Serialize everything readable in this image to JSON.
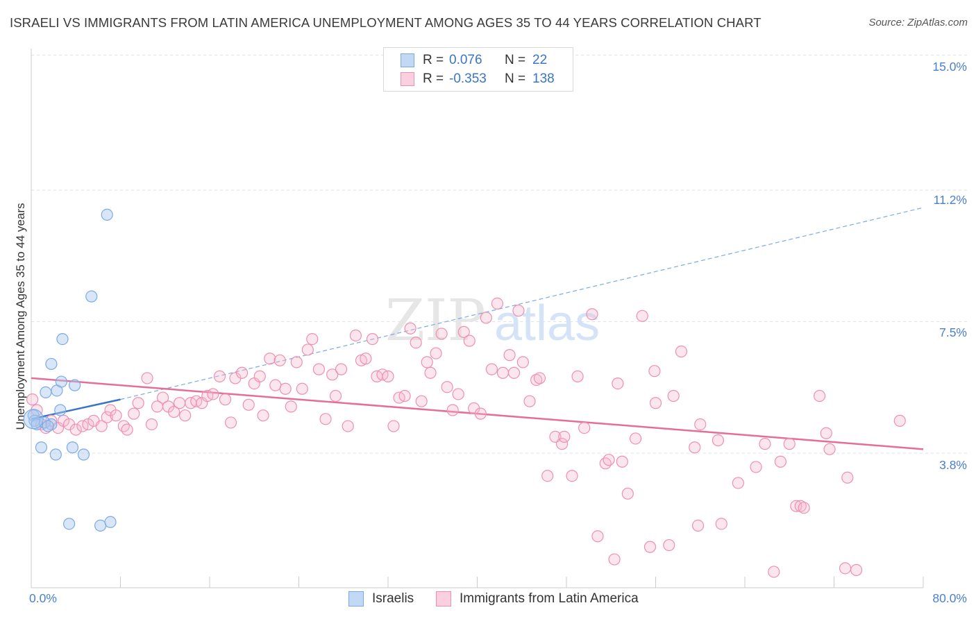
{
  "title": "ISRAELI VS IMMIGRANTS FROM LATIN AMERICA UNEMPLOYMENT AMONG AGES 35 TO 44 YEARS CORRELATION CHART",
  "source": "Source: ZipAtlas.com",
  "watermark": {
    "zip": "ZIP",
    "atlas": "atlas"
  },
  "legend": {
    "rows": [
      {
        "r_label": "R =",
        "r_value": "0.076",
        "n_label": "N =",
        "n_value": "22",
        "color": "#a9c7f0"
      },
      {
        "r_label": "R =",
        "r_value": "-0.353",
        "n_label": "N =",
        "n_value": "138",
        "color": "#f7b8cc"
      }
    ]
  },
  "bottom_legend": [
    {
      "label": "Israelis",
      "color": "#a9c7f0"
    },
    {
      "label": "Immigrants from Latin America",
      "color": "#f7b8cc"
    }
  ],
  "chart_data": {
    "type": "scatter",
    "title": "ISRAELI VS IMMIGRANTS FROM LATIN AMERICA UNEMPLOYMENT AMONG AGES 35 TO 44 YEARS CORRELATION CHART",
    "xlabel": "",
    "ylabel": "Unemployment Among Ages 35 to 44 years",
    "xlim": [
      0,
      80
    ],
    "ylim": [
      0,
      15.0
    ],
    "x_tick_labels": [
      "0.0%",
      "80.0%"
    ],
    "y_ticks": [
      3.8,
      7.5,
      11.2,
      15.0
    ],
    "y_tick_labels": [
      "3.8%",
      "7.5%",
      "11.2%",
      "15.0%"
    ],
    "series": [
      {
        "name": "Israelis",
        "color": "#7aaae6",
        "points": [
          [
            0.2,
            4.85
          ],
          [
            0.3,
            4.7
          ],
          [
            0.5,
            4.6
          ],
          [
            1.2,
            4.65
          ],
          [
            1.8,
            4.6
          ],
          [
            1.5,
            4.55
          ],
          [
            2.3,
            5.55
          ],
          [
            2.6,
            5.0
          ],
          [
            1.3,
            5.5
          ],
          [
            2.7,
            5.8
          ],
          [
            3.9,
            5.7
          ],
          [
            1.8,
            6.3
          ],
          [
            2.8,
            7.0
          ],
          [
            5.4,
            8.2
          ],
          [
            6.8,
            10.5
          ],
          [
            0.9,
            3.95
          ],
          [
            2.2,
            3.75
          ],
          [
            3.7,
            3.95
          ],
          [
            4.7,
            3.75
          ],
          [
            3.4,
            1.8
          ],
          [
            6.2,
            1.75
          ],
          [
            7.1,
            1.85
          ]
        ],
        "trend": {
          "x": [
            0,
            8
          ],
          "y": [
            4.75,
            5.3
          ],
          "dashed_extension": {
            "x": [
              8,
              80
            ],
            "y": [
              5.3,
              10.7
            ]
          }
        }
      },
      {
        "name": "Immigrants from Latin America",
        "color": "#ef8fb0",
        "points": [
          [
            0.1,
            5.3
          ],
          [
            0.5,
            5.0
          ],
          [
            0.9,
            4.6
          ],
          [
            1.3,
            4.5
          ],
          [
            1.8,
            4.7
          ],
          [
            2.4,
            4.5
          ],
          [
            2.9,
            4.7
          ],
          [
            3.4,
            4.6
          ],
          [
            4.0,
            4.45
          ],
          [
            4.6,
            4.55
          ],
          [
            5.1,
            4.6
          ],
          [
            5.6,
            4.7
          ],
          [
            6.3,
            4.55
          ],
          [
            6.8,
            4.8
          ],
          [
            7.1,
            5.0
          ],
          [
            7.6,
            4.85
          ],
          [
            8.3,
            4.55
          ],
          [
            8.6,
            4.45
          ],
          [
            9.2,
            4.9
          ],
          [
            9.6,
            5.2
          ],
          [
            10.4,
            5.9
          ],
          [
            10.8,
            4.6
          ],
          [
            11.3,
            5.1
          ],
          [
            11.8,
            5.35
          ],
          [
            12.3,
            5.1
          ],
          [
            12.8,
            4.95
          ],
          [
            13.3,
            5.2
          ],
          [
            13.8,
            4.85
          ],
          [
            14.3,
            5.2
          ],
          [
            14.8,
            5.25
          ],
          [
            15.3,
            5.2
          ],
          [
            15.8,
            5.4
          ],
          [
            16.3,
            5.45
          ],
          [
            16.9,
            5.95
          ],
          [
            17.4,
            5.3
          ],
          [
            17.9,
            4.65
          ],
          [
            18.3,
            5.9
          ],
          [
            18.9,
            6.05
          ],
          [
            19.5,
            5.15
          ],
          [
            20.0,
            5.75
          ],
          [
            20.5,
            5.95
          ],
          [
            20.8,
            4.85
          ],
          [
            21.4,
            6.45
          ],
          [
            21.9,
            5.7
          ],
          [
            22.3,
            6.4
          ],
          [
            22.8,
            5.6
          ],
          [
            23.3,
            5.1
          ],
          [
            23.8,
            6.35
          ],
          [
            24.3,
            5.6
          ],
          [
            24.8,
            6.7
          ],
          [
            25.2,
            7.0
          ],
          [
            25.8,
            6.15
          ],
          [
            26.4,
            4.75
          ],
          [
            27.0,
            6.0
          ],
          [
            27.3,
            5.4
          ],
          [
            27.8,
            6.15
          ],
          [
            28.4,
            4.55
          ],
          [
            29.1,
            7.1
          ],
          [
            29.6,
            6.4
          ],
          [
            30.0,
            6.45
          ],
          [
            30.6,
            7.0
          ],
          [
            31.0,
            5.95
          ],
          [
            31.5,
            6.0
          ],
          [
            32.0,
            5.95
          ],
          [
            32.5,
            4.55
          ],
          [
            33.0,
            5.35
          ],
          [
            33.5,
            5.4
          ],
          [
            34.0,
            7.3
          ],
          [
            34.5,
            6.9
          ],
          [
            35.0,
            5.25
          ],
          [
            35.5,
            6.35
          ],
          [
            35.8,
            6.05
          ],
          [
            36.3,
            6.6
          ],
          [
            36.8,
            7.15
          ],
          [
            37.3,
            5.65
          ],
          [
            37.8,
            5.0
          ],
          [
            38.3,
            5.45
          ],
          [
            38.8,
            7.2
          ],
          [
            39.3,
            6.95
          ],
          [
            39.7,
            5.05
          ],
          [
            40.3,
            4.9
          ],
          [
            40.8,
            7.6
          ],
          [
            41.3,
            6.15
          ],
          [
            41.8,
            8.0
          ],
          [
            42.3,
            6.05
          ],
          [
            42.9,
            6.55
          ],
          [
            43.3,
            6.05
          ],
          [
            43.7,
            7.8
          ],
          [
            44.1,
            6.35
          ],
          [
            44.7,
            5.25
          ],
          [
            45.3,
            5.85
          ],
          [
            45.6,
            5.9
          ],
          [
            46.3,
            3.15
          ],
          [
            47.0,
            4.25
          ],
          [
            47.6,
            4.05
          ],
          [
            47.8,
            4.25
          ],
          [
            48.5,
            3.15
          ],
          [
            49.0,
            5.95
          ],
          [
            49.6,
            4.5
          ],
          [
            50.3,
            7.7
          ],
          [
            50.8,
            1.45
          ],
          [
            51.5,
            3.5
          ],
          [
            51.8,
            3.6
          ],
          [
            52.3,
            0.8
          ],
          [
            52.6,
            5.75
          ],
          [
            53.0,
            3.55
          ],
          [
            53.5,
            2.65
          ],
          [
            54.2,
            4.2
          ],
          [
            54.8,
            7.65
          ],
          [
            55.5,
            1.15
          ],
          [
            55.9,
            6.1
          ],
          [
            56.0,
            5.2
          ],
          [
            57.2,
            1.2
          ],
          [
            57.6,
            5.4
          ],
          [
            58.3,
            6.65
          ],
          [
            59.5,
            3.95
          ],
          [
            59.8,
            1.75
          ],
          [
            60.0,
            4.6
          ],
          [
            61.6,
            4.15
          ],
          [
            61.9,
            1.8
          ],
          [
            63.4,
            2.95
          ],
          [
            65.0,
            3.4
          ],
          [
            65.8,
            4.05
          ],
          [
            66.6,
            0.45
          ],
          [
            67.2,
            3.55
          ],
          [
            68.0,
            4.05
          ],
          [
            68.6,
            2.3
          ],
          [
            69.0,
            2.3
          ],
          [
            69.3,
            2.25
          ],
          [
            70.7,
            5.4
          ],
          [
            71.3,
            4.35
          ],
          [
            71.6,
            3.9
          ],
          [
            73.0,
            0.55
          ],
          [
            73.2,
            3.1
          ],
          [
            74.0,
            0.5
          ],
          [
            77.9,
            4.7
          ]
        ],
        "trend": {
          "x": [
            0,
            80
          ],
          "y": [
            5.9,
            3.9
          ]
        }
      }
    ]
  }
}
